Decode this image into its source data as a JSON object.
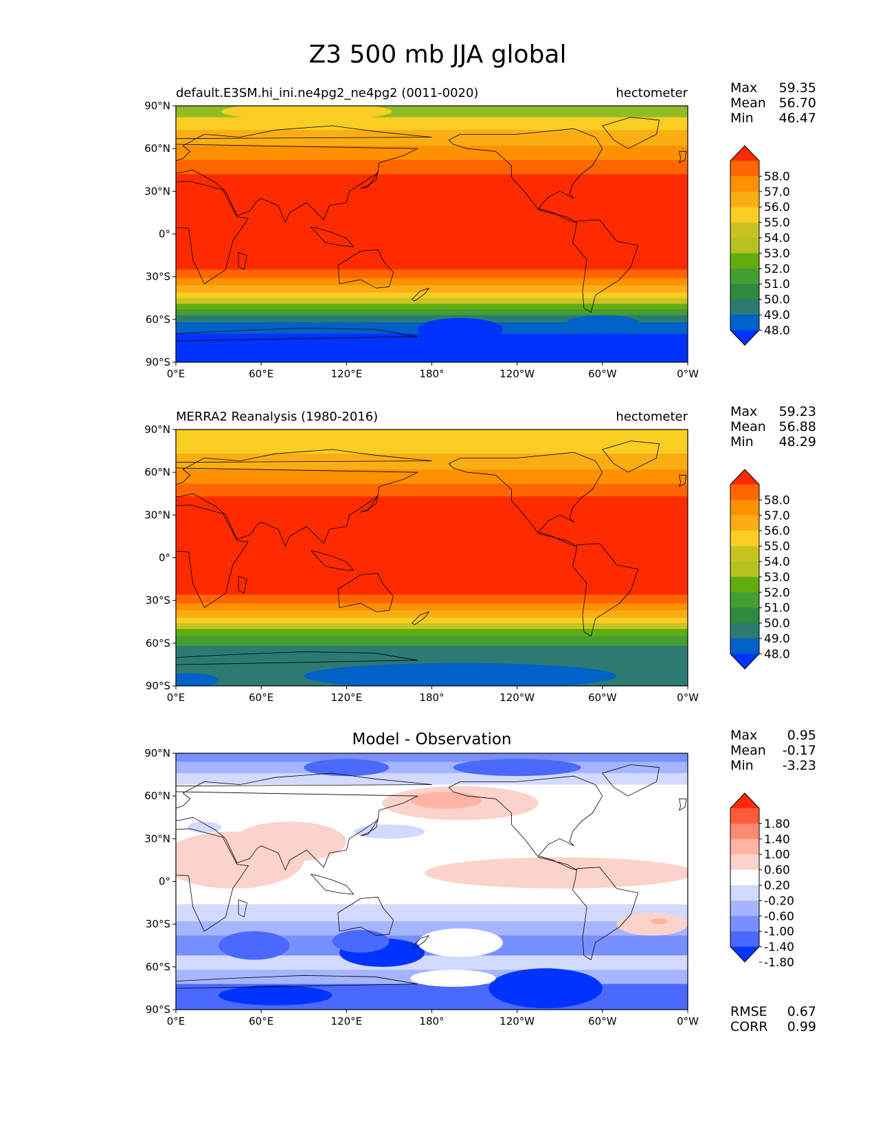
{
  "title": "Z3 500 mb JJA global",
  "panels": [
    {
      "id": "test",
      "left_title": "default.E3SM.hi_ini.ne4pg2_ne4pg2 (0011-0020)",
      "center_title": "",
      "right_title": "hectometer",
      "stats": [
        {
          "label": "Max",
          "value": "59.35"
        },
        {
          "label": "Mean",
          "value": "56.70"
        },
        {
          "label": "Min",
          "value": "46.47"
        }
      ],
      "colorbar_labels": [
        "58.0",
        "57.0",
        "56.0",
        "55.0",
        "54.0",
        "53.0",
        "52.0",
        "51.0",
        "50.0",
        "49.0",
        "48.0"
      ],
      "colorbar_colors": [
        "#ff2b00",
        "#ff6600",
        "#ff9100",
        "#fbad14",
        "#f9cd22",
        "#c9c322",
        "#b5c220",
        "#61ad10",
        "#449e31",
        "#2d8a3f",
        "#2c7a72",
        "#0061c8",
        "#0033ff"
      ],
      "field_bands": [
        {
          "lat_top": 90,
          "lat_bottom": 82,
          "color": "#8fbd26"
        },
        {
          "lat_top": 82,
          "lat_bottom": 73,
          "color": "#f9cd22"
        },
        {
          "lat_top": 73,
          "lat_bottom": 62,
          "color": "#fbad14"
        },
        {
          "lat_top": 62,
          "lat_bottom": 52,
          "color": "#ff9100"
        },
        {
          "lat_top": 52,
          "lat_bottom": 42,
          "color": "#ff6600"
        },
        {
          "lat_top": 42,
          "lat_bottom": -25,
          "color": "#ff2b00"
        },
        {
          "lat_top": -25,
          "lat_bottom": -31,
          "color": "#ff6600"
        },
        {
          "lat_top": -31,
          "lat_bottom": -36,
          "color": "#ff9100"
        },
        {
          "lat_top": -36,
          "lat_bottom": -41,
          "color": "#fbad14"
        },
        {
          "lat_top": -41,
          "lat_bottom": -45,
          "color": "#f9cd22"
        },
        {
          "lat_top": -45,
          "lat_bottom": -49,
          "color": "#c9c322"
        },
        {
          "lat_top": -49,
          "lat_bottom": -53,
          "color": "#61ad10"
        },
        {
          "lat_top": -53,
          "lat_bottom": -57,
          "color": "#449e31"
        },
        {
          "lat_top": -57,
          "lat_bottom": -62,
          "color": "#2c7a72"
        },
        {
          "lat_top": -62,
          "lat_bottom": -70,
          "color": "#0061c8"
        },
        {
          "lat_top": -70,
          "lat_bottom": -90,
          "color": "#0033ff"
        }
      ],
      "field_blobs": [
        {
          "lon": 92,
          "lat": 86,
          "dlon": 60,
          "dlat": 6,
          "color": "#f9cd22"
        },
        {
          "lon": 200,
          "lat": -67,
          "dlon": 30,
          "dlat": 8,
          "color": "#0033ff"
        },
        {
          "lon": 300,
          "lat": -62,
          "dlon": 25,
          "dlat": 5,
          "color": "#0061c8"
        }
      ]
    },
    {
      "id": "reference",
      "left_title": "MERRA2 Reanalysis (1980-2016)",
      "center_title": "",
      "right_title": "hectometer",
      "stats": [
        {
          "label": "Max",
          "value": "59.23"
        },
        {
          "label": "Mean",
          "value": "56.88"
        },
        {
          "label": "Min",
          "value": "48.29"
        }
      ],
      "colorbar_labels": [
        "58.0",
        "57.0",
        "56.0",
        "55.0",
        "54.0",
        "53.0",
        "52.0",
        "51.0",
        "50.0",
        "49.0",
        "48.0"
      ],
      "colorbar_colors": [
        "#ff2b00",
        "#ff6600",
        "#ff9100",
        "#fbad14",
        "#f9cd22",
        "#c9c322",
        "#b5c220",
        "#61ad10",
        "#449e31",
        "#2d8a3f",
        "#2c7a72",
        "#0061c8",
        "#0033ff"
      ],
      "field_bands": [
        {
          "lat_top": 90,
          "lat_bottom": 73,
          "color": "#f9cd22"
        },
        {
          "lat_top": 73,
          "lat_bottom": 62,
          "color": "#fbad14"
        },
        {
          "lat_top": 62,
          "lat_bottom": 52,
          "color": "#ff9100"
        },
        {
          "lat_top": 52,
          "lat_bottom": 43,
          "color": "#ff6600"
        },
        {
          "lat_top": 43,
          "lat_bottom": -26,
          "color": "#ff2b00"
        },
        {
          "lat_top": -26,
          "lat_bottom": -32,
          "color": "#ff6600"
        },
        {
          "lat_top": -32,
          "lat_bottom": -37,
          "color": "#ff9100"
        },
        {
          "lat_top": -37,
          "lat_bottom": -42,
          "color": "#fbad14"
        },
        {
          "lat_top": -42,
          "lat_bottom": -46,
          "color": "#f9cd22"
        },
        {
          "lat_top": -46,
          "lat_bottom": -50,
          "color": "#c9c322"
        },
        {
          "lat_top": -50,
          "lat_bottom": -55,
          "color": "#61ad10"
        },
        {
          "lat_top": -55,
          "lat_bottom": -62,
          "color": "#449e31"
        },
        {
          "lat_top": -62,
          "lat_bottom": -90,
          "color": "#2c7a72"
        }
      ],
      "field_blobs": [
        {
          "lon": 200,
          "lat": -83,
          "dlon": 110,
          "dlat": 9,
          "color": "#0061c8"
        },
        {
          "lon": 10,
          "lat": -86,
          "dlon": 20,
          "dlat": 5,
          "color": "#0061c8"
        }
      ]
    },
    {
      "id": "difference",
      "left_title": "",
      "center_title": "Model - Observation",
      "right_title": "",
      "stats": [
        {
          "label": "Max",
          "value": "0.95"
        },
        {
          "label": "Mean",
          "value": "-0.17"
        },
        {
          "label": "Min",
          "value": "-3.23"
        }
      ],
      "colorbar_labels": [
        "1.80",
        "1.40",
        "1.00",
        "0.60",
        "0.20",
        "-0.20",
        "-0.60",
        "-1.00",
        "-1.40",
        "-1.80"
      ],
      "colorbar_colors": [
        "#ff2b00",
        "#ff5a3c",
        "#ff8a73",
        "#ffb3a3",
        "#fcd3cb",
        "#ffffff",
        "#d2daff",
        "#a6b5ff",
        "#788fff",
        "#4a69ff",
        "#0033ff"
      ],
      "footer_stats": [
        {
          "label": "RMSE",
          "value": "0.67"
        },
        {
          "label": "CORR",
          "value": "0.99"
        }
      ],
      "field_bands": [
        {
          "lat_top": 90,
          "lat_bottom": 84,
          "color": "#788fff"
        },
        {
          "lat_top": 84,
          "lat_bottom": 76,
          "color": "#a6b5ff"
        },
        {
          "lat_top": 76,
          "lat_bottom": 68,
          "color": "#d2daff"
        },
        {
          "lat_top": 68,
          "lat_bottom": -16,
          "color": "#ffffff"
        },
        {
          "lat_top": -16,
          "lat_bottom": -28,
          "color": "#d2daff"
        },
        {
          "lat_top": -28,
          "lat_bottom": -38,
          "color": "#a6b5ff"
        },
        {
          "lat_top": -38,
          "lat_bottom": -52,
          "color": "#788fff"
        },
        {
          "lat_top": -52,
          "lat_bottom": -62,
          "color": "#d2daff"
        },
        {
          "lat_top": -62,
          "lat_bottom": -72,
          "color": "#a6b5ff"
        },
        {
          "lat_top": -72,
          "lat_bottom": -90,
          "color": "#4a69ff"
        }
      ],
      "field_blobs": [
        {
          "lon": 40,
          "lat": 15,
          "dlon": 50,
          "dlat": 20,
          "color": "#fcd3cb"
        },
        {
          "lon": 80,
          "lat": 28,
          "dlon": 40,
          "dlat": 14,
          "color": "#fcd3cb"
        },
        {
          "lon": 270,
          "lat": 6,
          "dlon": 95,
          "dlat": 11,
          "color": "#fcd3cb"
        },
        {
          "lon": 200,
          "lat": 55,
          "dlon": 55,
          "dlat": 12,
          "color": "#fcd3cb"
        },
        {
          "lon": 190,
          "lat": 57,
          "dlon": 25,
          "dlat": 6,
          "color": "#ffb3a3"
        },
        {
          "lon": 335,
          "lat": -30,
          "dlon": 25,
          "dlat": 8,
          "color": "#fcd3cb"
        },
        {
          "lon": 340,
          "lat": -28,
          "dlon": 6,
          "dlat": 2,
          "color": "#ffb3a3"
        },
        {
          "lon": 150,
          "lat": 35,
          "dlon": 25,
          "dlat": 5,
          "color": "#d2daff"
        },
        {
          "lon": 20,
          "lat": 38,
          "dlon": 12,
          "dlat": 4,
          "color": "#d2daff"
        },
        {
          "lon": 145,
          "lat": -50,
          "dlon": 30,
          "dlat": 10,
          "color": "#0033ff"
        },
        {
          "lon": 130,
          "lat": -42,
          "dlon": 20,
          "dlat": 8,
          "color": "#4a69ff"
        },
        {
          "lon": 55,
          "lat": -45,
          "dlon": 25,
          "dlat": 10,
          "color": "#4a69ff"
        },
        {
          "lon": 260,
          "lat": -75,
          "dlon": 40,
          "dlat": 14,
          "color": "#0033ff"
        },
        {
          "lon": 70,
          "lat": -80,
          "dlon": 40,
          "dlat": 7,
          "color": "#0033ff"
        },
        {
          "lon": 200,
          "lat": -43,
          "dlon": 30,
          "dlat": 10,
          "color": "#ffffff"
        },
        {
          "lon": 195,
          "lat": -68,
          "dlon": 30,
          "dlat": 6,
          "color": "#ffffff"
        },
        {
          "lon": 240,
          "lat": 80,
          "dlon": 45,
          "dlat": 6,
          "color": "#4a69ff"
        },
        {
          "lon": 120,
          "lat": 80,
          "dlon": 30,
          "dlat": 6,
          "color": "#4a69ff"
        }
      ]
    }
  ],
  "x_ticks": [
    "0°E",
    "60°E",
    "120°E",
    "180°",
    "120°W",
    "60°W",
    "0°W"
  ],
  "y_ticks": [
    "90°N",
    "60°N",
    "30°N",
    "0°",
    "30°S",
    "60°S",
    "90°S"
  ],
  "coastline_color": "#000000"
}
